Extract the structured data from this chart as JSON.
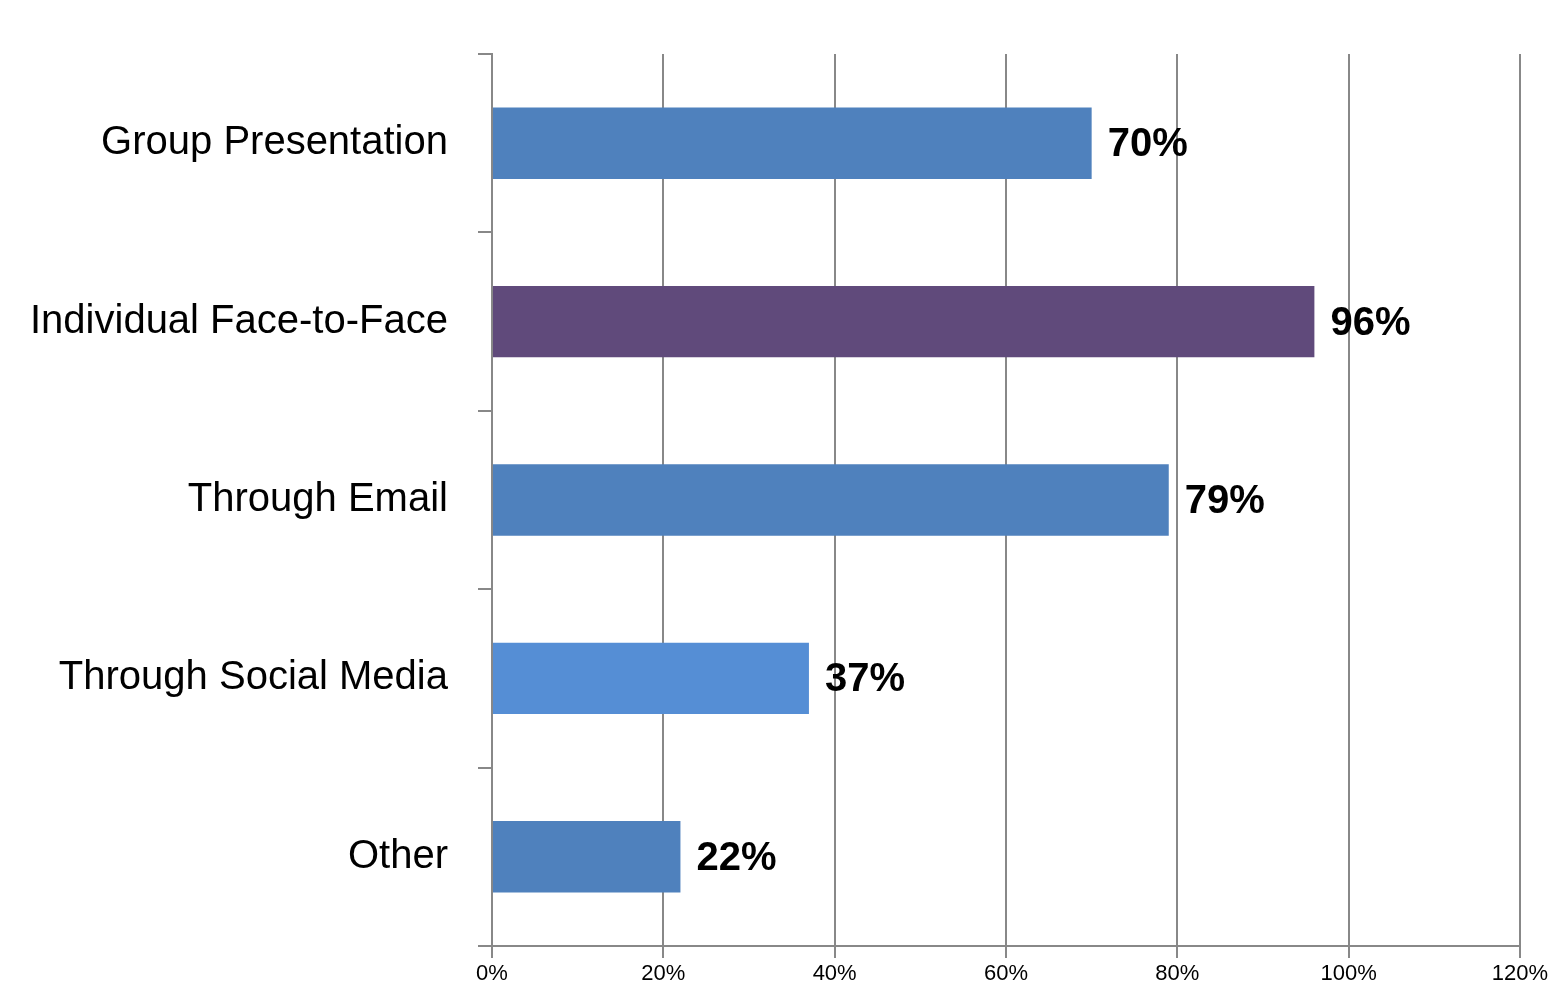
{
  "chart_data": {
    "type": "bar",
    "orientation": "horizontal",
    "categories": [
      "Group Presentation",
      "Individual Face-to-Face",
      "Through Email",
      "Through Social Media",
      "Other"
    ],
    "values": [
      70,
      96,
      79,
      37,
      22
    ],
    "colors": [
      "#4f81bd",
      "#604a7b",
      "#4f81bd",
      "#558ed5",
      "#4f81bd"
    ],
    "value_labels": [
      "70%",
      "96%",
      "79%",
      "37%",
      "22%"
    ],
    "xlim": [
      0,
      120
    ],
    "xticks": [
      {
        "value": 0,
        "label": "0%"
      },
      {
        "value": 20,
        "label": "20%"
      },
      {
        "value": 40,
        "label": "40%"
      },
      {
        "value": 60,
        "label": "60%"
      },
      {
        "value": 80,
        "label": "80%"
      },
      {
        "value": 100,
        "label": "100%"
      },
      {
        "value": 120,
        "label": "120%"
      }
    ],
    "grid": "x",
    "legend": false
  }
}
